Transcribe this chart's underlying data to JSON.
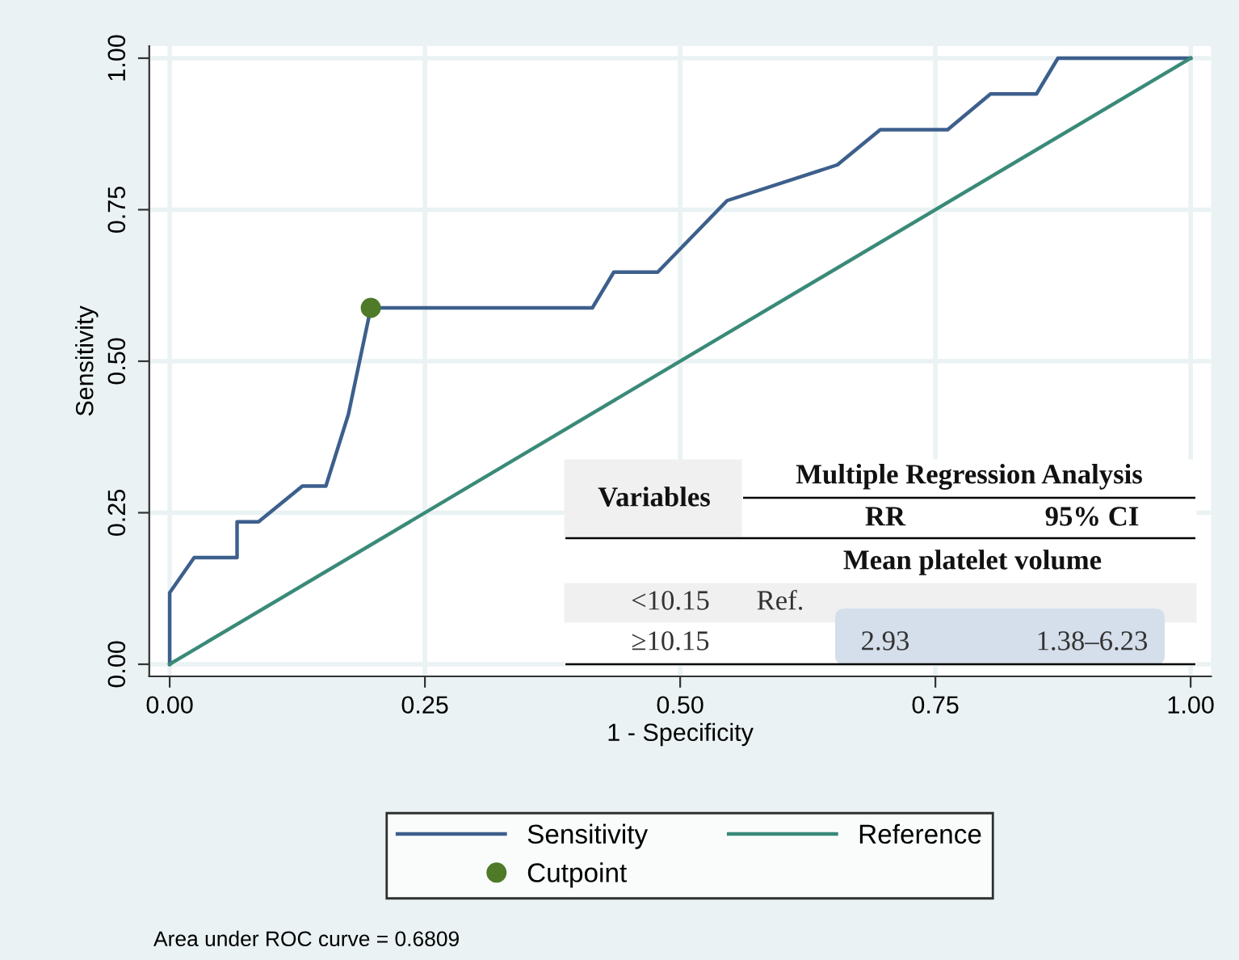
{
  "chart_data": {
    "type": "line",
    "xlabel": "1 - Specificity",
    "ylabel": "Sensitivity",
    "xlim": [
      -0.02,
      1.02
    ],
    "ylim": [
      -0.02,
      1.02
    ],
    "xticks": [
      {
        "value": 0,
        "label": "0.00"
      },
      {
        "value": 0.25,
        "label": "0.25"
      },
      {
        "value": 0.5,
        "label": "0.50"
      },
      {
        "value": 0.75,
        "label": "0.75"
      },
      {
        "value": 1,
        "label": "1.00"
      }
    ],
    "yticks": [
      {
        "value": 0,
        "label": "0.00"
      },
      {
        "value": 0.25,
        "label": "0.25"
      },
      {
        "value": 0.5,
        "label": "0.50"
      },
      {
        "value": 0.75,
        "label": "0.75"
      },
      {
        "value": 1,
        "label": "1.00"
      }
    ],
    "grid": true,
    "legend": "bottom",
    "series": [
      {
        "name": "Sensitivity",
        "color": "#3d5f8c",
        "x": [
          0,
          0,
          0.024,
          0.066,
          0.066,
          0.087,
          0.13,
          0.153,
          0.175,
          0.197,
          0.414,
          0.435,
          0.478,
          0.546,
          0.654,
          0.696,
          0.762,
          0.804,
          0.849,
          0.87,
          1
        ],
        "values": [
          0,
          0.118,
          0.176,
          0.176,
          0.235,
          0.235,
          0.294,
          0.294,
          0.412,
          0.588,
          0.588,
          0.647,
          0.647,
          0.765,
          0.824,
          0.882,
          0.882,
          0.941,
          0.941,
          1,
          1
        ]
      },
      {
        "name": "Reference",
        "color": "#3a8a78",
        "x": [
          0,
          1
        ],
        "values": [
          0,
          1
        ]
      },
      {
        "name": "Cutpoint",
        "type": "scatter",
        "color": "#4f7a28",
        "marker": "circle",
        "x": [
          0.197
        ],
        "values": [
          0.588
        ]
      }
    ],
    "annotations": [
      "Variables",
      "Multiple Regression Analysis",
      "RR",
      "95% CI",
      "Mean platelet volume",
      "<10.15",
      "Ref.",
      "≥10.15",
      "2.93",
      "1.38–6.23",
      "Area under ROC curve = 0.6809"
    ]
  }
}
